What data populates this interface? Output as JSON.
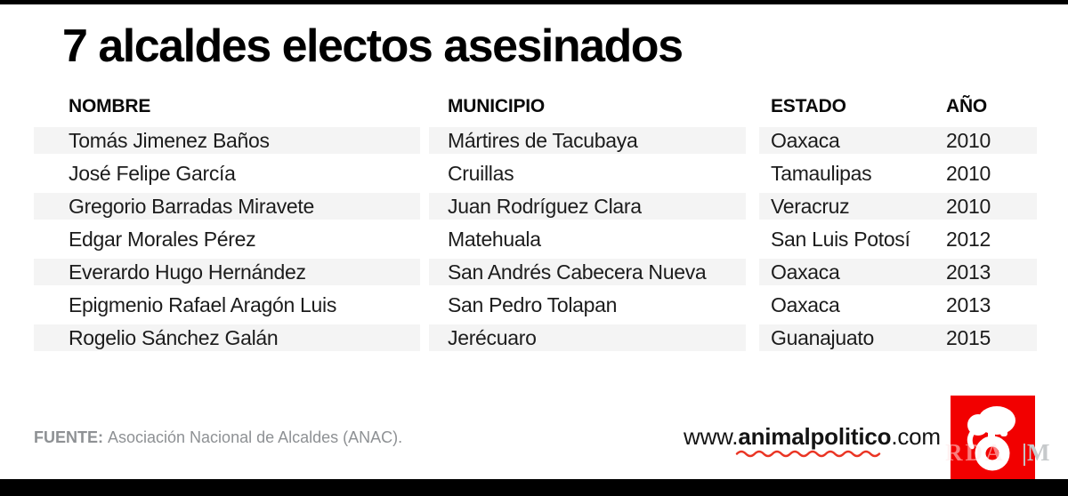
{
  "title": "7 alcaldes electos asesinados",
  "chart_data": {
    "type": "table",
    "title": "7 alcaldes electos asesinados",
    "columns": [
      "NOMBRE",
      "MUNICIPIO",
      "ESTADO",
      "AÑO"
    ],
    "rows": [
      [
        "Tomás Jimenez Baños",
        "Mártires de Tacubaya",
        "Oaxaca",
        "2010"
      ],
      [
        "José Felipe García",
        "Cruillas",
        "Tamaulipas",
        "2010"
      ],
      [
        "Gregorio Barradas Miravete",
        "Juan Rodríguez Clara",
        "Veracruz",
        "2010"
      ],
      [
        "Edgar Morales Pérez",
        "Matehuala",
        "San Luis Potosí",
        "2012"
      ],
      [
        "Everardo Hugo Hernández",
        "San Andrés Cabecera Nueva",
        "Oaxaca",
        "2013"
      ],
      [
        "Epigmenio Rafael Aragón Luis",
        "San Pedro Tolapan",
        "Oaxaca",
        "2013"
      ],
      [
        "Rogelio Sánchez Galán",
        "Jerécuaro",
        "Guanajuato",
        "2015"
      ]
    ],
    "striped_row_indices": [
      0,
      2,
      4,
      6
    ],
    "layout": "striped table, no grid lines, 3 column blocks (nombre | municipio | estado+año)"
  },
  "footer": {
    "source_label": "FUENTE:",
    "source_text": "Asociación Nacional de Alcaldes (ANAC).",
    "website_prefix": "www.",
    "website_brand": "animalpolitico",
    "website_suffix": ".com"
  },
  "branding": {
    "logo_icon": "elephant-on-ball-icon",
    "watermark_left": "RDA",
    "watermark_right": "|M"
  },
  "colors": {
    "stripe_gray": "#f4f4f4",
    "accent_red": "#f20000",
    "squiggle_red": "#ea3423",
    "source_gray": "#8e9194",
    "bar_black": "#000000"
  }
}
